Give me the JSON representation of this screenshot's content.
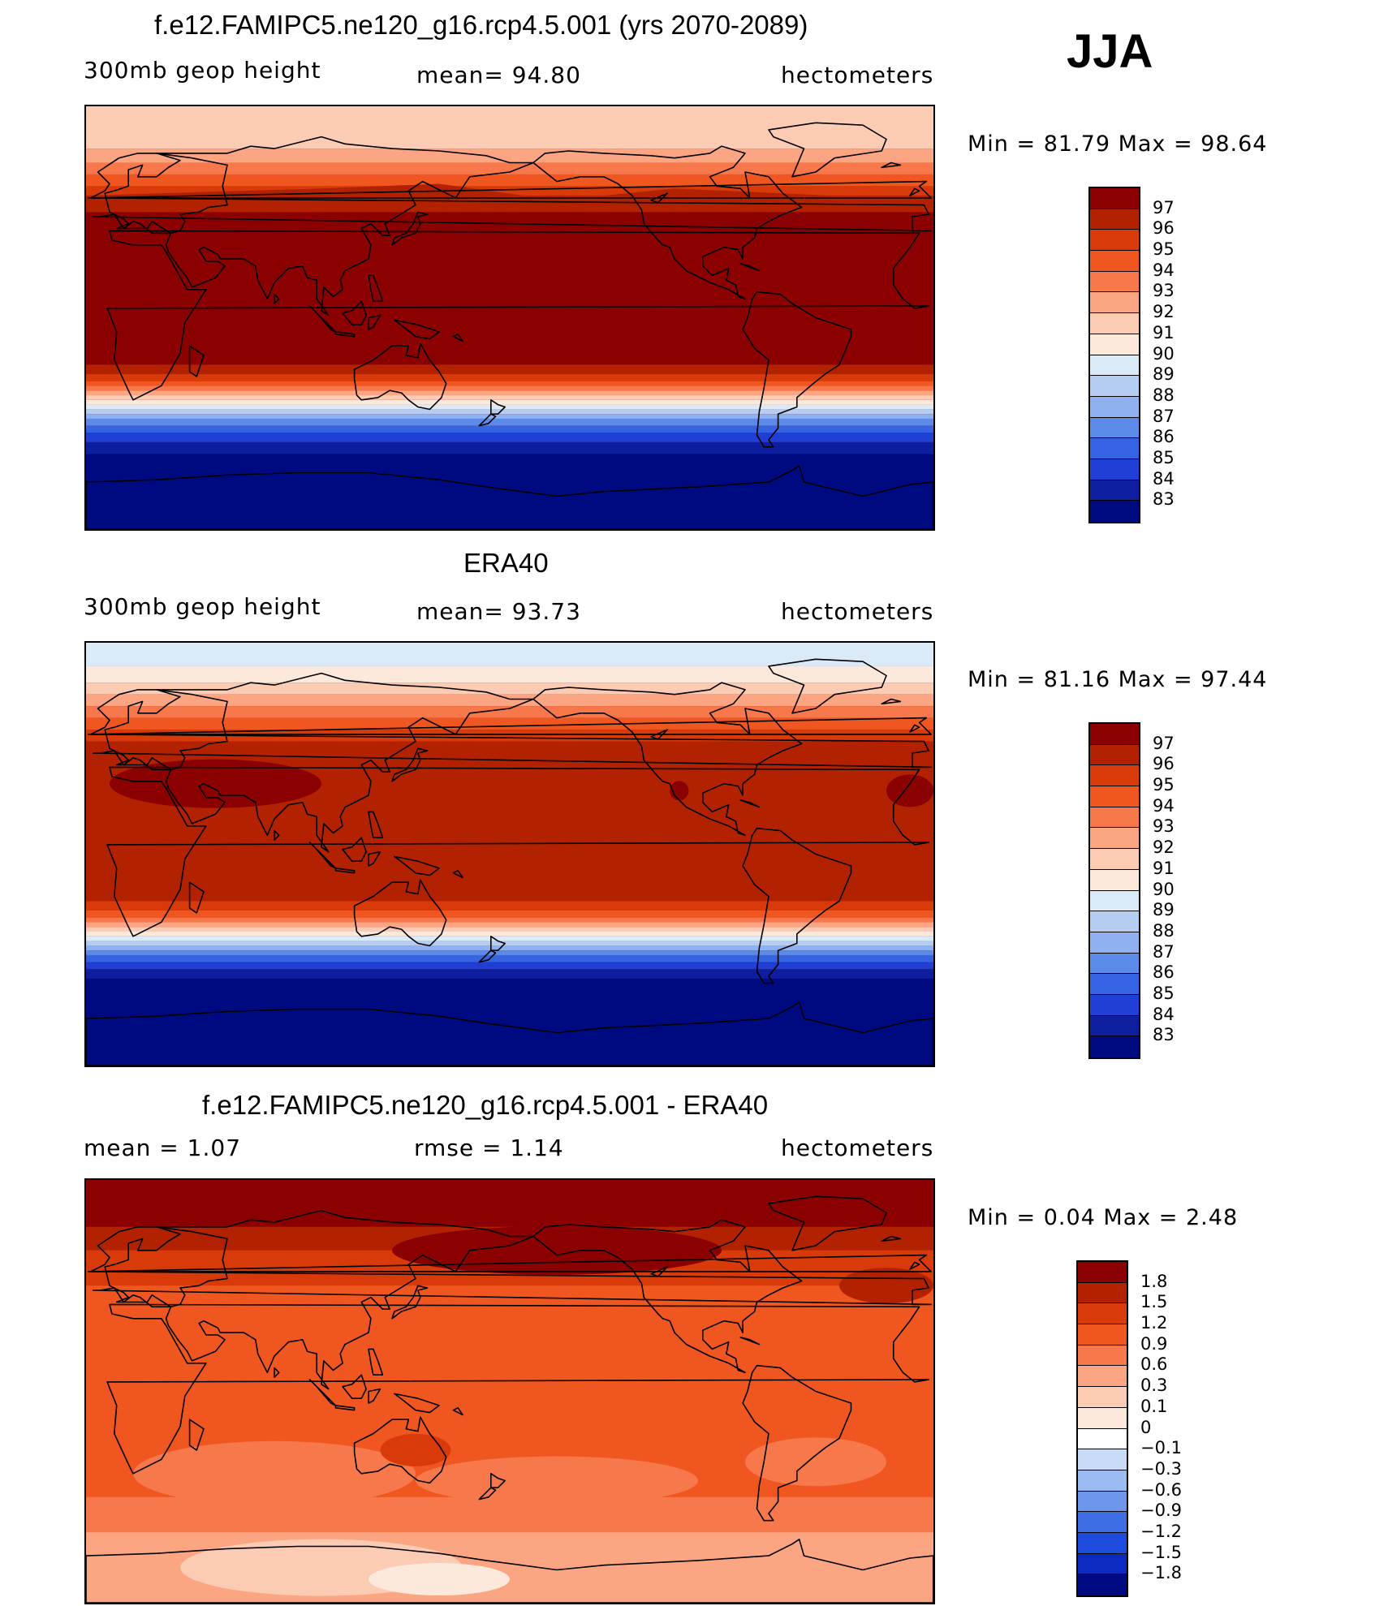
{
  "season": "JJA",
  "panels": [
    {
      "id": "model",
      "title": "f.e12.FAMIPC5.ne120_g16.rcp4.5.001 (yrs 2070-2089)",
      "left_label": "300mb  geop  height",
      "center_label": "mean=   94.80",
      "right_label": "hectometers",
      "minmax": "Min  =    81.79  Max  =    98.64",
      "colorbar_labels": [
        "97",
        "96",
        "95",
        "94",
        "93",
        "92",
        "91",
        "90",
        "89",
        "88",
        "87",
        "86",
        "85",
        "84",
        "83"
      ]
    },
    {
      "id": "obs",
      "title": "ERA40",
      "left_label": "300mb  geop  height",
      "center_label": "mean=   93.73",
      "right_label": "hectometers",
      "minmax": "Min  =    81.16  Max  =    97.44",
      "colorbar_labels": [
        "97",
        "96",
        "95",
        "94",
        "93",
        "92",
        "91",
        "90",
        "89",
        "88",
        "87",
        "86",
        "85",
        "84",
        "83"
      ]
    },
    {
      "id": "diff",
      "title": "f.e12.FAMIPC5.ne120_g16.rcp4.5.001 - ERA40",
      "left_label": "mean  =      1.07",
      "center_label": "rmse  =      1.14",
      "right_label": "hectometers",
      "minmax": "Min  =     0.04  Max  =      2.48",
      "colorbar_labels": [
        "1.8",
        "1.5",
        "1.2",
        "0.9",
        "0.6",
        "0.3",
        "0.1",
        "0",
        "−0.1",
        "−0.3",
        "−0.6",
        "−0.9",
        "−1.2",
        "−1.5",
        "−1.8"
      ]
    }
  ],
  "colors": {
    "abs_scale": [
      "#8b0000",
      "#b22200",
      "#d93a0a",
      "#f0561f",
      "#f7784a",
      "#fba583",
      "#fccbb3",
      "#fde9dc",
      "#dbeaf7",
      "#b4cdf1",
      "#8fb1ef",
      "#5c8ae8",
      "#3563e2",
      "#1f3ed4",
      "#0d1e9e",
      "#000a80"
    ],
    "diff_scale": [
      "#8b0000",
      "#b22200",
      "#d93a0a",
      "#f0561f",
      "#f7784a",
      "#fba583",
      "#fccbb3",
      "#fde9dc",
      "#ffffff",
      "#c9dbf6",
      "#9bbcf1",
      "#6d97eb",
      "#3f6ee4",
      "#1d4bde",
      "#0b2bc0",
      "#000a80"
    ],
    "coast": "#000000"
  }
}
